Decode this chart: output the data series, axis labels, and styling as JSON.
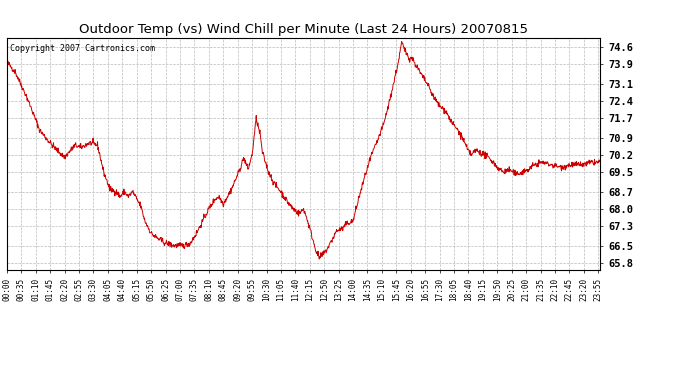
{
  "title": "Outdoor Temp (vs) Wind Chill per Minute (Last 24 Hours) 20070815",
  "copyright_text": "Copyright 2007 Cartronics.com",
  "line_color": "#cc0000",
  "background_color": "#ffffff",
  "plot_bg_color": "#ffffff",
  "grid_color": "#bbbbbb",
  "yticks": [
    65.8,
    66.5,
    67.3,
    68.0,
    68.7,
    69.5,
    70.2,
    70.9,
    71.7,
    72.4,
    73.1,
    73.9,
    74.6
  ],
  "ylim": [
    65.5,
    75.0
  ],
  "xtick_labels": [
    "00:00",
    "00:35",
    "01:10",
    "01:45",
    "02:20",
    "02:55",
    "03:30",
    "04:05",
    "04:40",
    "05:15",
    "05:50",
    "06:25",
    "07:00",
    "07:35",
    "08:10",
    "08:45",
    "09:20",
    "09:55",
    "10:30",
    "11:05",
    "11:40",
    "12:15",
    "12:50",
    "13:25",
    "14:00",
    "14:35",
    "15:10",
    "15:45",
    "16:20",
    "16:55",
    "17:30",
    "18:05",
    "18:40",
    "19:15",
    "19:50",
    "20:25",
    "21:00",
    "21:35",
    "22:10",
    "22:45",
    "23:20",
    "23:55"
  ],
  "n_points": 1440,
  "key_points": [
    [
      0,
      74.0
    ],
    [
      20,
      73.6
    ],
    [
      50,
      72.5
    ],
    [
      80,
      71.2
    ],
    [
      110,
      70.6
    ],
    [
      140,
      70.1
    ],
    [
      165,
      70.6
    ],
    [
      180,
      70.5
    ],
    [
      200,
      70.7
    ],
    [
      220,
      70.6
    ],
    [
      235,
      69.5
    ],
    [
      250,
      68.8
    ],
    [
      265,
      68.7
    ],
    [
      275,
      68.5
    ],
    [
      285,
      68.7
    ],
    [
      295,
      68.5
    ],
    [
      305,
      68.7
    ],
    [
      315,
      68.4
    ],
    [
      325,
      68.1
    ],
    [
      335,
      67.5
    ],
    [
      350,
      67.0
    ],
    [
      365,
      66.8
    ],
    [
      385,
      66.6
    ],
    [
      405,
      66.5
    ],
    [
      420,
      66.5
    ],
    [
      430,
      66.5
    ],
    [
      445,
      66.6
    ],
    [
      460,
      67.0
    ],
    [
      475,
      67.5
    ],
    [
      490,
      68.0
    ],
    [
      505,
      68.4
    ],
    [
      515,
      68.5
    ],
    [
      525,
      68.2
    ],
    [
      535,
      68.5
    ],
    [
      545,
      68.8
    ],
    [
      555,
      69.2
    ],
    [
      565,
      69.6
    ],
    [
      575,
      70.1
    ],
    [
      585,
      69.6
    ],
    [
      595,
      70.2
    ],
    [
      605,
      71.7
    ],
    [
      615,
      71.0
    ],
    [
      620,
      70.3
    ],
    [
      635,
      69.5
    ],
    [
      650,
      69.0
    ],
    [
      665,
      68.7
    ],
    [
      680,
      68.3
    ],
    [
      695,
      68.0
    ],
    [
      710,
      67.8
    ],
    [
      720,
      68.0
    ],
    [
      730,
      67.5
    ],
    [
      740,
      66.9
    ],
    [
      750,
      66.3
    ],
    [
      758,
      66.0
    ],
    [
      765,
      66.1
    ],
    [
      775,
      66.3
    ],
    [
      785,
      66.6
    ],
    [
      800,
      67.1
    ],
    [
      815,
      67.2
    ],
    [
      825,
      67.4
    ],
    [
      840,
      67.5
    ],
    [
      855,
      68.5
    ],
    [
      870,
      69.4
    ],
    [
      885,
      70.2
    ],
    [
      900,
      70.8
    ],
    [
      915,
      71.5
    ],
    [
      930,
      72.5
    ],
    [
      942,
      73.4
    ],
    [
      950,
      74.0
    ],
    [
      958,
      74.8
    ],
    [
      965,
      74.5
    ],
    [
      972,
      74.3
    ],
    [
      978,
      74.1
    ],
    [
      983,
      74.2
    ],
    [
      988,
      74.0
    ],
    [
      995,
      73.8
    ],
    [
      1005,
      73.5
    ],
    [
      1020,
      73.1
    ],
    [
      1035,
      72.6
    ],
    [
      1050,
      72.2
    ],
    [
      1065,
      72.0
    ],
    [
      1080,
      71.5
    ],
    [
      1095,
      71.2
    ],
    [
      1108,
      70.8
    ],
    [
      1118,
      70.4
    ],
    [
      1128,
      70.2
    ],
    [
      1138,
      70.4
    ],
    [
      1148,
      70.3
    ],
    [
      1160,
      70.2
    ],
    [
      1175,
      70.0
    ],
    [
      1190,
      69.7
    ],
    [
      1205,
      69.5
    ],
    [
      1220,
      69.6
    ],
    [
      1235,
      69.4
    ],
    [
      1250,
      69.5
    ],
    [
      1265,
      69.6
    ],
    [
      1280,
      69.8
    ],
    [
      1300,
      69.9
    ],
    [
      1320,
      69.8
    ],
    [
      1345,
      69.7
    ],
    [
      1370,
      69.8
    ],
    [
      1400,
      69.8
    ],
    [
      1420,
      69.9
    ],
    [
      1440,
      69.9
    ]
  ]
}
